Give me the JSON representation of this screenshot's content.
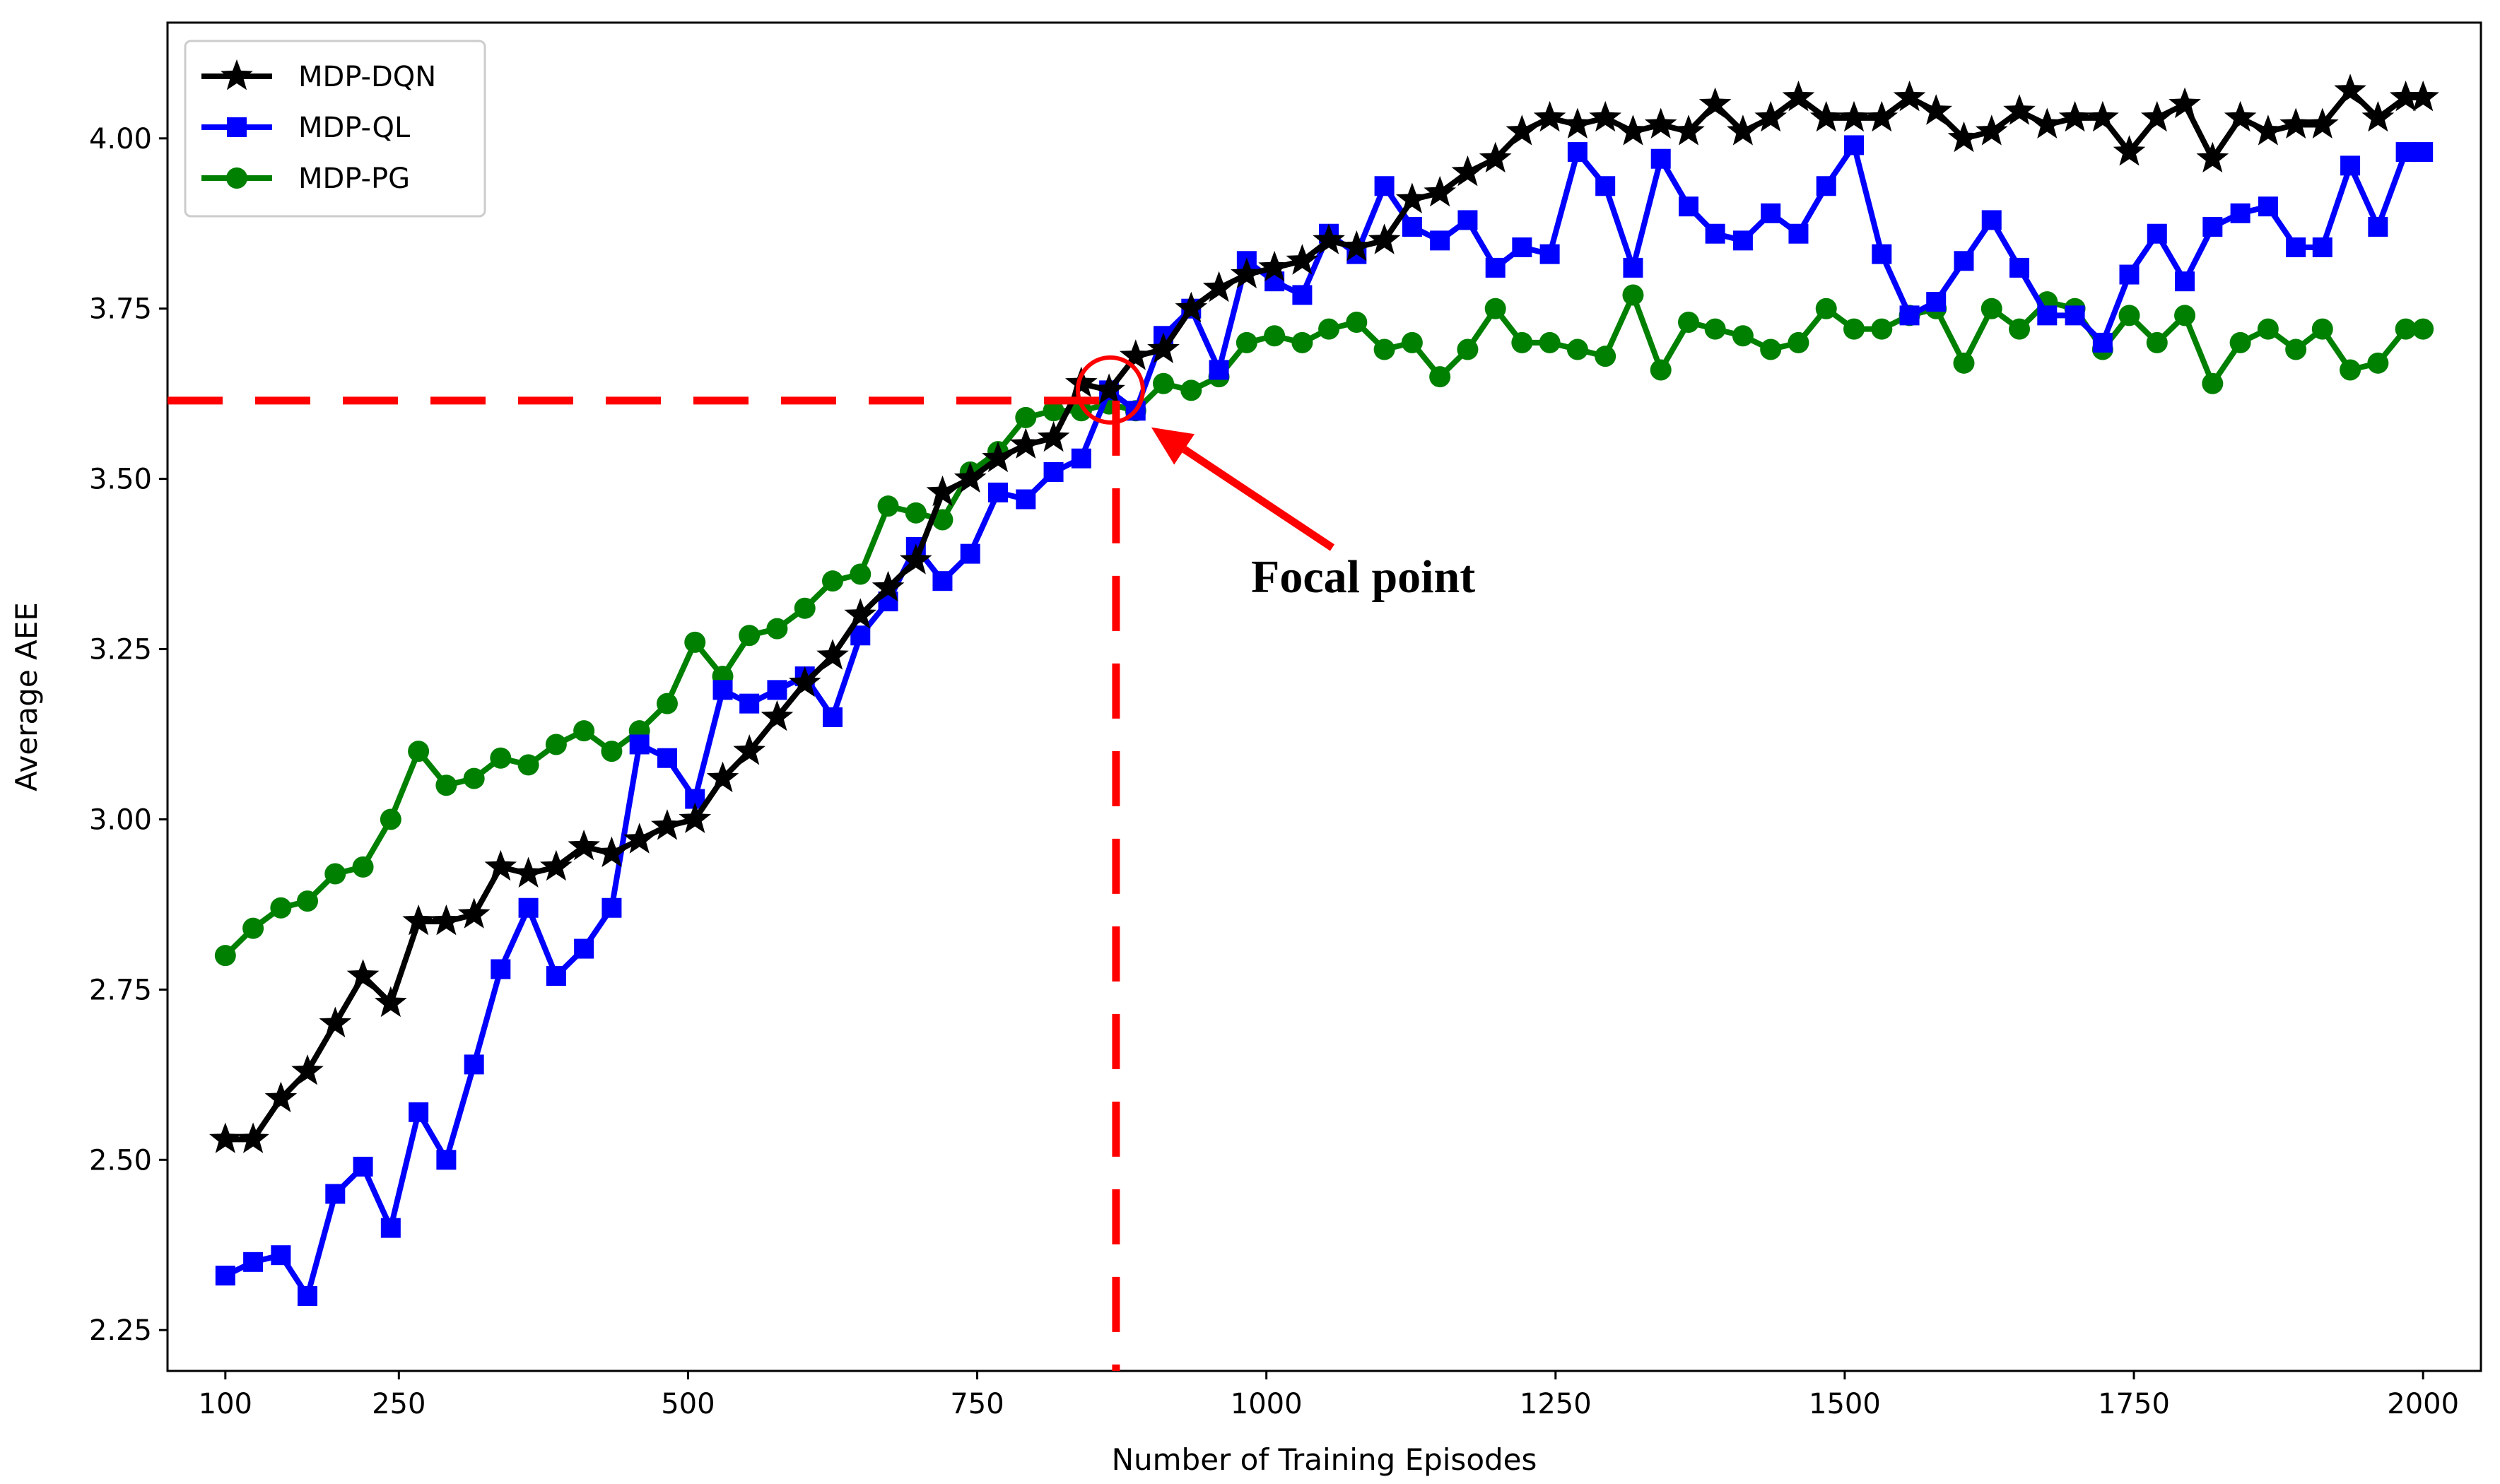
{
  "chart_data": {
    "type": "line",
    "title": "",
    "xlabel": "Number of Training Episodes",
    "ylabel": "Average AEE",
    "xlim": [
      50,
      2050
    ],
    "ylim": [
      2.19,
      4.17
    ],
    "x_ticks": [
      100,
      250,
      500,
      750,
      1000,
      1250,
      1500,
      1750,
      2000
    ],
    "y_ticks": [
      2.25,
      2.5,
      2.75,
      3.0,
      3.25,
      3.5,
      3.75,
      4.0
    ],
    "y_tick_labels": [
      "2.25",
      "2.50",
      "2.75",
      "3.00",
      "3.25",
      "3.50",
      "3.75",
      "4.00"
    ],
    "grid": false,
    "legend_position": "top-left",
    "x": [
      100,
      124,
      148,
      171,
      195,
      219,
      243,
      267,
      291,
      315,
      338,
      362,
      386,
      410,
      434,
      458,
      482,
      506,
      530,
      553,
      577,
      601,
      625,
      649,
      673,
      697,
      720,
      744,
      768,
      792,
      816,
      840,
      864,
      887,
      911,
      935,
      959,
      983,
      1007,
      1031,
      1054,
      1078,
      1102,
      1126,
      1150,
      1174,
      1198,
      1221,
      1245,
      1269,
      1293,
      1317,
      1341,
      1365,
      1388,
      1412,
      1436,
      1460,
      1484,
      1508,
      1532,
      1556,
      1579,
      1603,
      1627,
      1651,
      1675,
      1699,
      1723,
      1746,
      1770,
      1794,
      1818,
      1842,
      1866,
      1890,
      1913,
      1937,
      1961,
      1985,
      2000
    ],
    "series": [
      {
        "name": "MDP-DQN",
        "color": "#000000",
        "marker": "star",
        "values": [
          2.53,
          2.53,
          2.59,
          2.63,
          2.7,
          2.77,
          2.73,
          2.85,
          2.85,
          2.86,
          2.93,
          2.92,
          2.93,
          2.96,
          2.95,
          2.97,
          2.99,
          3.0,
          3.06,
          3.1,
          3.15,
          3.2,
          3.24,
          3.3,
          3.34,
          3.38,
          3.48,
          3.5,
          3.53,
          3.55,
          3.56,
          3.64,
          3.63,
          3.68,
          3.69,
          3.75,
          3.78,
          3.8,
          3.81,
          3.82,
          3.85,
          3.84,
          3.85,
          3.91,
          3.92,
          3.95,
          3.97,
          4.01,
          4.03,
          4.02,
          4.03,
          4.01,
          4.02,
          4.01,
          4.05,
          4.01,
          4.03,
          4.06,
          4.03,
          4.03,
          4.03,
          4.06,
          4.04,
          4.0,
          4.01,
          4.04,
          4.02,
          4.03,
          4.03,
          3.98,
          4.03,
          4.05,
          3.97,
          4.03,
          4.01,
          4.02,
          4.02,
          4.07,
          4.03,
          4.06,
          4.06
        ]
      },
      {
        "name": "MDP-QL",
        "color": "#0000ff",
        "marker": "square",
        "values": [
          2.33,
          2.35,
          2.36,
          2.3,
          2.45,
          2.49,
          2.4,
          2.57,
          2.5,
          2.64,
          2.78,
          2.87,
          2.77,
          2.81,
          2.87,
          3.11,
          3.09,
          3.03,
          3.19,
          3.17,
          3.19,
          3.21,
          3.15,
          3.27,
          3.32,
          3.4,
          3.35,
          3.39,
          3.48,
          3.47,
          3.51,
          3.53,
          3.63,
          3.6,
          3.71,
          3.75,
          3.66,
          3.82,
          3.79,
          3.77,
          3.86,
          3.83,
          3.93,
          3.87,
          3.85,
          3.88,
          3.81,
          3.84,
          3.83,
          3.98,
          3.93,
          3.81,
          3.97,
          3.9,
          3.86,
          3.85,
          3.89,
          3.86,
          3.93,
          3.99,
          3.83,
          3.74,
          3.76,
          3.82,
          3.88,
          3.81,
          3.74,
          3.74,
          3.7,
          3.8,
          3.86,
          3.79,
          3.87,
          3.89,
          3.9,
          3.84,
          3.84,
          3.96,
          3.87,
          3.98,
          3.98
        ]
      },
      {
        "name": "MDP-PG",
        "color": "#008000",
        "marker": "circle",
        "values": [
          2.8,
          2.84,
          2.87,
          2.88,
          2.92,
          2.93,
          3.0,
          3.1,
          3.05,
          3.06,
          3.09,
          3.08,
          3.11,
          3.13,
          3.1,
          3.13,
          3.17,
          3.26,
          3.21,
          3.27,
          3.28,
          3.31,
          3.35,
          3.36,
          3.46,
          3.45,
          3.44,
          3.51,
          3.54,
          3.59,
          3.6,
          3.6,
          3.61,
          3.6,
          3.64,
          3.63,
          3.65,
          3.7,
          3.71,
          3.7,
          3.72,
          3.73,
          3.69,
          3.7,
          3.65,
          3.69,
          3.75,
          3.7,
          3.7,
          3.69,
          3.68,
          3.77,
          3.66,
          3.73,
          3.72,
          3.71,
          3.69,
          3.7,
          3.75,
          3.72,
          3.72,
          3.74,
          3.75,
          3.67,
          3.75,
          3.72,
          3.76,
          3.75,
          3.69,
          3.74,
          3.7,
          3.74,
          3.64,
          3.7,
          3.72,
          3.69,
          3.72,
          3.66,
          3.67,
          3.72,
          3.72
        ]
      }
    ],
    "annotation": {
      "text": "Focal point",
      "point": {
        "x": 870,
        "y": 3.615
      },
      "color": "#ff0000",
      "dashed_guides": true
    }
  }
}
